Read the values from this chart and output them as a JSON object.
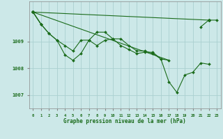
{
  "title": "Graphe pression niveau de la mer (hPa)",
  "xlabel_hours": [
    0,
    1,
    2,
    3,
    4,
    5,
    6,
    7,
    8,
    9,
    10,
    11,
    12,
    13,
    14,
    15,
    16,
    17,
    18,
    19,
    20,
    21,
    22,
    23
  ],
  "ylim": [
    1006.5,
    1010.5
  ],
  "yticks": [
    1007,
    1008,
    1009
  ],
  "background_color": "#cce8e8",
  "grid_color": "#aad0d0",
  "line_color": "#1a6b1a",
  "series1": [
    1010.1,
    1009.65,
    null,
    null,
    null,
    null,
    null,
    null,
    null,
    null,
    null,
    null,
    null,
    null,
    null,
    null,
    null,
    null,
    null,
    null,
    null,
    1009.55,
    1009.8,
    1009.8
  ],
  "series2": [
    1010.1,
    1009.65,
    1009.3,
    1009.05,
    1008.85,
    1008.65,
    1009.05,
    1009.05,
    1009.35,
    1009.35,
    1009.1,
    1008.85,
    1008.7,
    1008.55,
    1008.6,
    1008.6,
    1008.35,
    1008.3,
    null,
    null,
    null,
    null,
    null,
    null
  ],
  "series3": [
    1010.1,
    1009.65,
    1009.3,
    1009.05,
    1008.5,
    1008.3,
    1008.55,
    1009.05,
    1008.85,
    1009.05,
    1009.1,
    1009.1,
    1008.85,
    1008.65,
    1008.65,
    1008.55,
    1008.35,
    1007.5,
    1007.1,
    1007.75,
    1007.85,
    1008.2,
    1008.15,
    null
  ],
  "series4_straight": [
    [
      0,
      1010.1
    ],
    [
      23,
      1009.8
    ]
  ]
}
